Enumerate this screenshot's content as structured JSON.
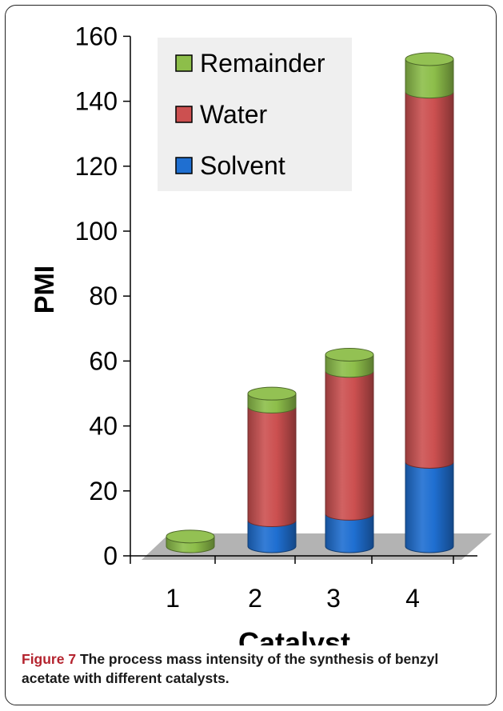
{
  "chart_data": {
    "type": "bar",
    "stacked": true,
    "style": "3d-cylinder",
    "xlabel": "Catalyst",
    "ylabel": "PMI",
    "categories": [
      "1",
      "2",
      "3",
      "4"
    ],
    "ylim": [
      0,
      160
    ],
    "yticks": [
      0,
      20,
      40,
      60,
      80,
      100,
      120,
      140,
      160
    ],
    "grid": false,
    "legend_position": "top-left",
    "legend_order": [
      "Remainder",
      "Water",
      "Solvent"
    ],
    "series": [
      {
        "name": "Solvent",
        "values": [
          0,
          8,
          10,
          26
        ],
        "color": "#1f6fd1"
      },
      {
        "name": "Water",
        "values": [
          0,
          35,
          44,
          114
        ],
        "color": "#cc5050"
      },
      {
        "name": "Remainder",
        "values": [
          3,
          4,
          5,
          10
        ],
        "color": "#8dbe4a"
      }
    ]
  },
  "caption": {
    "label": "Figure 7",
    "text": "The process mass intensity of the synthesis of benzyl acetate with different catalysts."
  }
}
